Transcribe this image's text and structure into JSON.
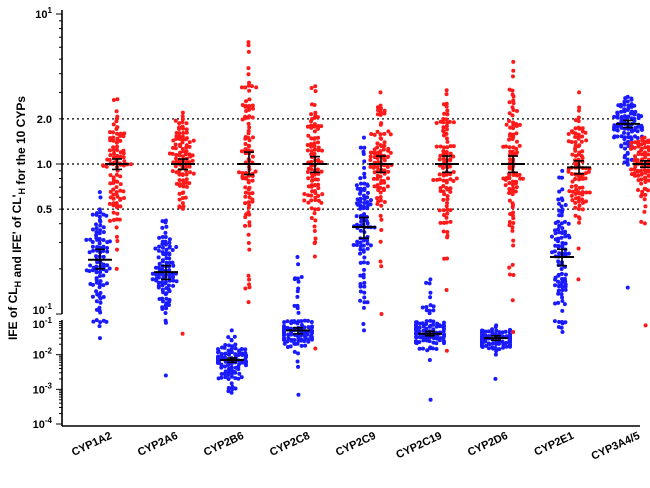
{
  "chart_data": {
    "type": "scatter",
    "ylabel": {
      "parts": [
        {
          "text": "IFE of CL",
          "sub": false
        },
        {
          "text": "H",
          "sub": true
        },
        {
          "text": " and IFE' of CL'",
          "sub": false
        },
        {
          "text": "H",
          "sub": true
        },
        {
          "text": " for the 10 CYPs",
          "sub": false
        }
      ]
    },
    "y_scale": "log",
    "y_axis_upper": {
      "ylim": [
        0.1,
        10
      ],
      "ticks": [
        {
          "value": 10,
          "base": "10",
          "exp": "1"
        },
        {
          "value": 2.0,
          "label": "2.0"
        },
        {
          "value": 1.0,
          "label": "1.0"
        },
        {
          "value": 0.5,
          "label": "0.5"
        },
        {
          "value": 0.1,
          "base": "10",
          "exp": "-1"
        }
      ]
    },
    "y_axis_lower": {
      "ylim": [
        0.0001,
        0.1
      ],
      "ticks": [
        {
          "value": 0.1,
          "base": "10",
          "exp": "-1"
        },
        {
          "value": 0.01,
          "base": "10",
          "exp": "-2"
        },
        {
          "value": 0.001,
          "base": "10",
          "exp": "-3"
        },
        {
          "value": 0.0001,
          "base": "10",
          "exp": "-4"
        }
      ]
    },
    "reference_lines": [
      2.0,
      1.0,
      0.5
    ],
    "grid": false,
    "legend": "none",
    "colors": {
      "blue_series": "#1a1aff",
      "red_series": "#ff1a1a",
      "error_bars": "#000000"
    },
    "categories": [
      "CYP1A2",
      "CYP2A6",
      "CYP2B6",
      "CYP2C8",
      "CYP2C9",
      "CYP2C19",
      "CYP2D6",
      "CYP2E1",
      "CYP3A4/5"
    ],
    "series": [
      {
        "color": "blue",
        "groups": [
          {
            "category": "CYP1A2",
            "median": 0.23,
            "ci": [
              0.2,
              0.27
            ],
            "min": 0.03,
            "max": 0.65,
            "n": 100
          },
          {
            "category": "CYP2A6",
            "median": 0.19,
            "ci": [
              0.17,
              0.21
            ],
            "min": 0.0025,
            "max": 0.42,
            "n": 100
          },
          {
            "category": "CYP2B6",
            "median": 0.007,
            "ci": [
              0.006,
              0.008
            ],
            "min": 0.0008,
            "max": 0.05,
            "n": 100
          },
          {
            "category": "CYP2C8",
            "median": 0.05,
            "ci": [
              0.04,
              0.06
            ],
            "min": 0.0007,
            "max": 0.24,
            "n": 100
          },
          {
            "category": "CYP2C9",
            "median": 0.38,
            "ci": [
              0.32,
              0.44
            ],
            "min": 0.05,
            "max": 1.5,
            "n": 100
          },
          {
            "category": "CYP2C19",
            "median": 0.04,
            "ci": [
              0.035,
              0.047
            ],
            "min": 0.0005,
            "max": 0.17,
            "n": 100
          },
          {
            "category": "CYP2D6",
            "median": 0.03,
            "ci": [
              0.026,
              0.035
            ],
            "min": 0.002,
            "max": 0.07,
            "n": 100
          },
          {
            "category": "CYP2E1",
            "median": 0.24,
            "ci": [
              0.21,
              0.27
            ],
            "min": 0.045,
            "max": 0.9,
            "n": 100
          },
          {
            "category": "CYP3A4/5",
            "median": 1.85,
            "ci": [
              1.75,
              1.95
            ],
            "min": 0.15,
            "max": 2.8,
            "n": 100
          }
        ]
      },
      {
        "color": "red",
        "groups": [
          {
            "category": "CYP1A2",
            "median": 1.0,
            "ci": [
              0.92,
              1.08
            ],
            "min": 0.2,
            "max": 2.7,
            "n": 100
          },
          {
            "category": "CYP2A6",
            "median": 1.0,
            "ci": [
              0.92,
              1.08
            ],
            "min": 0.04,
            "max": 2.2,
            "n": 100
          },
          {
            "category": "CYP2B6",
            "median": 1.0,
            "ci": [
              0.85,
              1.2
            ],
            "min": 0.12,
            "max": 6.5,
            "n": 100
          },
          {
            "category": "CYP2C8",
            "median": 1.0,
            "ci": [
              0.88,
              1.12
            ],
            "min": 0.015,
            "max": 3.3,
            "n": 100
          },
          {
            "category": "CYP2C9",
            "median": 1.0,
            "ci": [
              0.88,
              1.13
            ],
            "min": 0.1,
            "max": 3.0,
            "n": 100
          },
          {
            "category": "CYP2C19",
            "median": 1.0,
            "ci": [
              0.88,
              1.13
            ],
            "min": 0.013,
            "max": 3.1,
            "n": 100
          },
          {
            "category": "CYP2D6",
            "median": 1.0,
            "ci": [
              0.88,
              1.13
            ],
            "min": 0.045,
            "max": 4.8,
            "n": 100
          },
          {
            "category": "CYP2E1",
            "median": 0.95,
            "ci": [
              0.86,
              1.05
            ],
            "min": 0.17,
            "max": 3.0,
            "n": 100
          },
          {
            "category": "CYP3A4/5",
            "median": 1.0,
            "ci": [
              0.95,
              1.05
            ],
            "min": 0.07,
            "max": 1.5,
            "n": 100
          }
        ]
      }
    ]
  }
}
